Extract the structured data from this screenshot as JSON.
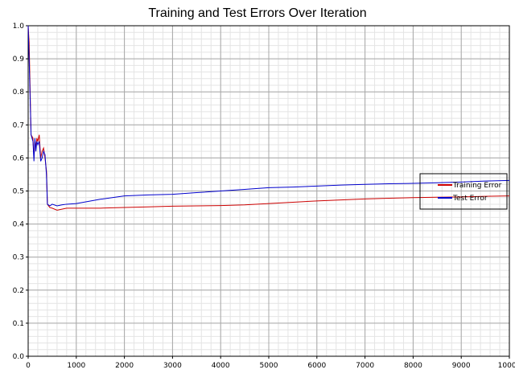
{
  "chart_data": {
    "type": "line",
    "title": "Training and Test Errors Over Iteration",
    "xlabel": "",
    "ylabel": "",
    "xlim": [
      0,
      10000
    ],
    "ylim": [
      0,
      1
    ],
    "x_ticks": [
      "0",
      "1000",
      "2000",
      "3000",
      "4000",
      "5000",
      "6000",
      "7000",
      "8000",
      "9000",
      "10000"
    ],
    "y_ticks": [
      "0.0",
      "0.1",
      "0.2",
      "0.3",
      "0.4",
      "0.5",
      "0.6",
      "0.7",
      "0.8",
      "0.9",
      "1.0"
    ],
    "grid": true,
    "legend_position": "right",
    "series": [
      {
        "name": "Training Error",
        "color": "#cc0000",
        "x": [
          0,
          20,
          60,
          100,
          120,
          140,
          160,
          180,
          200,
          230,
          260,
          290,
          320,
          350,
          380,
          400,
          450,
          500,
          600,
          700,
          800,
          1000,
          1500,
          2000,
          2500,
          3000,
          3500,
          4000,
          4500,
          5000,
          5500,
          6000,
          6500,
          7000,
          7500,
          8000,
          8500,
          9000,
          9500,
          10000
        ],
        "y": [
          1.0,
          0.95,
          0.67,
          0.66,
          0.6,
          0.65,
          0.63,
          0.66,
          0.65,
          0.67,
          0.6,
          0.62,
          0.63,
          0.6,
          0.56,
          0.46,
          0.45,
          0.448,
          0.442,
          0.445,
          0.448,
          0.448,
          0.448,
          0.45,
          0.452,
          0.454,
          0.455,
          0.456,
          0.458,
          0.462,
          0.466,
          0.47,
          0.473,
          0.476,
          0.478,
          0.48,
          0.481,
          0.482,
          0.484,
          0.485
        ]
      },
      {
        "name": "Test Error",
        "color": "#0000cc",
        "x": [
          0,
          20,
          60,
          100,
          120,
          140,
          160,
          180,
          200,
          230,
          260,
          290,
          320,
          350,
          380,
          400,
          450,
          500,
          600,
          700,
          800,
          1000,
          1500,
          2000,
          2500,
          3000,
          3500,
          4000,
          4500,
          5000,
          5500,
          6000,
          6500,
          7000,
          7500,
          8000,
          8500,
          9000,
          9500,
          10000
        ],
        "y": [
          1.0,
          0.9,
          0.67,
          0.65,
          0.59,
          0.66,
          0.62,
          0.65,
          0.64,
          0.65,
          0.59,
          0.6,
          0.62,
          0.61,
          0.55,
          0.46,
          0.455,
          0.46,
          0.455,
          0.458,
          0.46,
          0.462,
          0.475,
          0.485,
          0.488,
          0.49,
          0.495,
          0.5,
          0.505,
          0.51,
          0.512,
          0.515,
          0.518,
          0.52,
          0.522,
          0.523,
          0.525,
          0.527,
          0.53,
          0.532
        ]
      }
    ]
  }
}
